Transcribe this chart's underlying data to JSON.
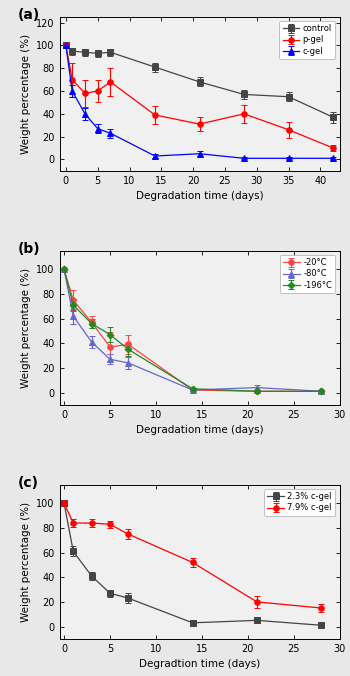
{
  "panel_a": {
    "title": "(a)",
    "xlabel": "Degradation time (days)",
    "ylabel": "Weight percentage (%)",
    "xlim": [
      -1,
      43
    ],
    "ylim": [
      -10,
      125
    ],
    "yticks": [
      0,
      20,
      40,
      60,
      80,
      100,
      120
    ],
    "xticks": [
      0,
      5,
      10,
      15,
      20,
      25,
      30,
      35,
      40
    ],
    "series": [
      {
        "label": "control",
        "color": "#444444",
        "marker": "s",
        "markersize": 4,
        "x": [
          0,
          1,
          3,
          5,
          7,
          14,
          21,
          28,
          35,
          42
        ],
        "y": [
          100,
          95,
          94,
          93,
          94,
          81,
          68,
          57,
          55,
          37
        ],
        "yerr": [
          0,
          3,
          3,
          3,
          3,
          4,
          4,
          4,
          4,
          5
        ]
      },
      {
        "label": "p-gel",
        "color": "#ff0000",
        "marker": "o",
        "markersize": 4,
        "x": [
          0,
          1,
          3,
          5,
          7,
          14,
          21,
          28,
          35,
          42
        ],
        "y": [
          100,
          70,
          58,
          60,
          68,
          39,
          31,
          40,
          26,
          10
        ],
        "yerr": [
          0,
          15,
          12,
          10,
          12,
          8,
          6,
          8,
          7,
          3
        ]
      },
      {
        "label": "c-gel",
        "color": "#0000ff",
        "marker": "^",
        "markersize": 4,
        "x": [
          0,
          1,
          3,
          5,
          7,
          14,
          21,
          28,
          35,
          42
        ],
        "y": [
          100,
          60,
          40,
          27,
          23,
          3,
          5,
          1,
          1,
          1
        ],
        "yerr": [
          0,
          5,
          5,
          4,
          4,
          2,
          2,
          1,
          1,
          1
        ]
      }
    ]
  },
  "panel_b": {
    "title": "(b)",
    "xlabel": "Degradation time (days)",
    "ylabel": "Weight percentage (%)",
    "xlim": [
      -0.5,
      30
    ],
    "ylim": [
      -10,
      115
    ],
    "yticks": [
      0,
      20,
      40,
      60,
      80,
      100
    ],
    "xticks": [
      0,
      5,
      10,
      15,
      20,
      25,
      30
    ],
    "series": [
      {
        "label": "-20°C",
        "color": "#ff4444",
        "marker": "o",
        "markersize": 4,
        "x": [
          0,
          1,
          3,
          5,
          7,
          14,
          21,
          28
        ],
        "y": [
          100,
          75,
          57,
          37,
          39,
          2,
          1,
          1
        ],
        "yerr": [
          0,
          8,
          5,
          12,
          8,
          1,
          1,
          1
        ]
      },
      {
        "label": "-80°C",
        "color": "#6666cc",
        "marker": "^",
        "markersize": 4,
        "x": [
          0,
          1,
          3,
          5,
          7,
          14,
          21,
          28
        ],
        "y": [
          100,
          62,
          41,
          27,
          24,
          2,
          4,
          1
        ],
        "yerr": [
          0,
          6,
          5,
          4,
          5,
          1,
          2,
          1
        ]
      },
      {
        "label": "-196°C",
        "color": "#228822",
        "marker": "D",
        "markersize": 3.5,
        "x": [
          0,
          1,
          3,
          5,
          7,
          14,
          21,
          28
        ],
        "y": [
          100,
          71,
          56,
          47,
          35,
          3,
          1,
          1
        ],
        "yerr": [
          0,
          5,
          4,
          6,
          5,
          1,
          1,
          1
        ]
      }
    ]
  },
  "panel_c": {
    "title": "(c)",
    "xlabel": "Degradtion time (days)",
    "ylabel": "Weight percentage (%)",
    "xlim": [
      -0.5,
      30
    ],
    "ylim": [
      -10,
      115
    ],
    "yticks": [
      0,
      20,
      40,
      60,
      80,
      100
    ],
    "xticks": [
      0,
      5,
      10,
      15,
      20,
      25,
      30
    ],
    "series": [
      {
        "label": "2.3% c-gel",
        "color": "#444444",
        "marker": "s",
        "markersize": 4,
        "x": [
          0,
          1,
          3,
          5,
          7,
          14,
          21,
          28
        ],
        "y": [
          100,
          61,
          41,
          27,
          23,
          3,
          5,
          1
        ],
        "yerr": [
          0,
          4,
          3,
          3,
          4,
          2,
          2,
          1
        ]
      },
      {
        "label": "7.9% c-gel",
        "color": "#ff0000",
        "marker": "o",
        "markersize": 4,
        "x": [
          0,
          1,
          3,
          5,
          7,
          14,
          21,
          28
        ],
        "y": [
          100,
          84,
          84,
          83,
          75,
          52,
          20,
          15
        ],
        "yerr": [
          0,
          3,
          3,
          3,
          4,
          4,
          5,
          3
        ]
      }
    ]
  },
  "fig_facecolor": "#e8e8e8",
  "axes_facecolor": "#f0f0f0"
}
